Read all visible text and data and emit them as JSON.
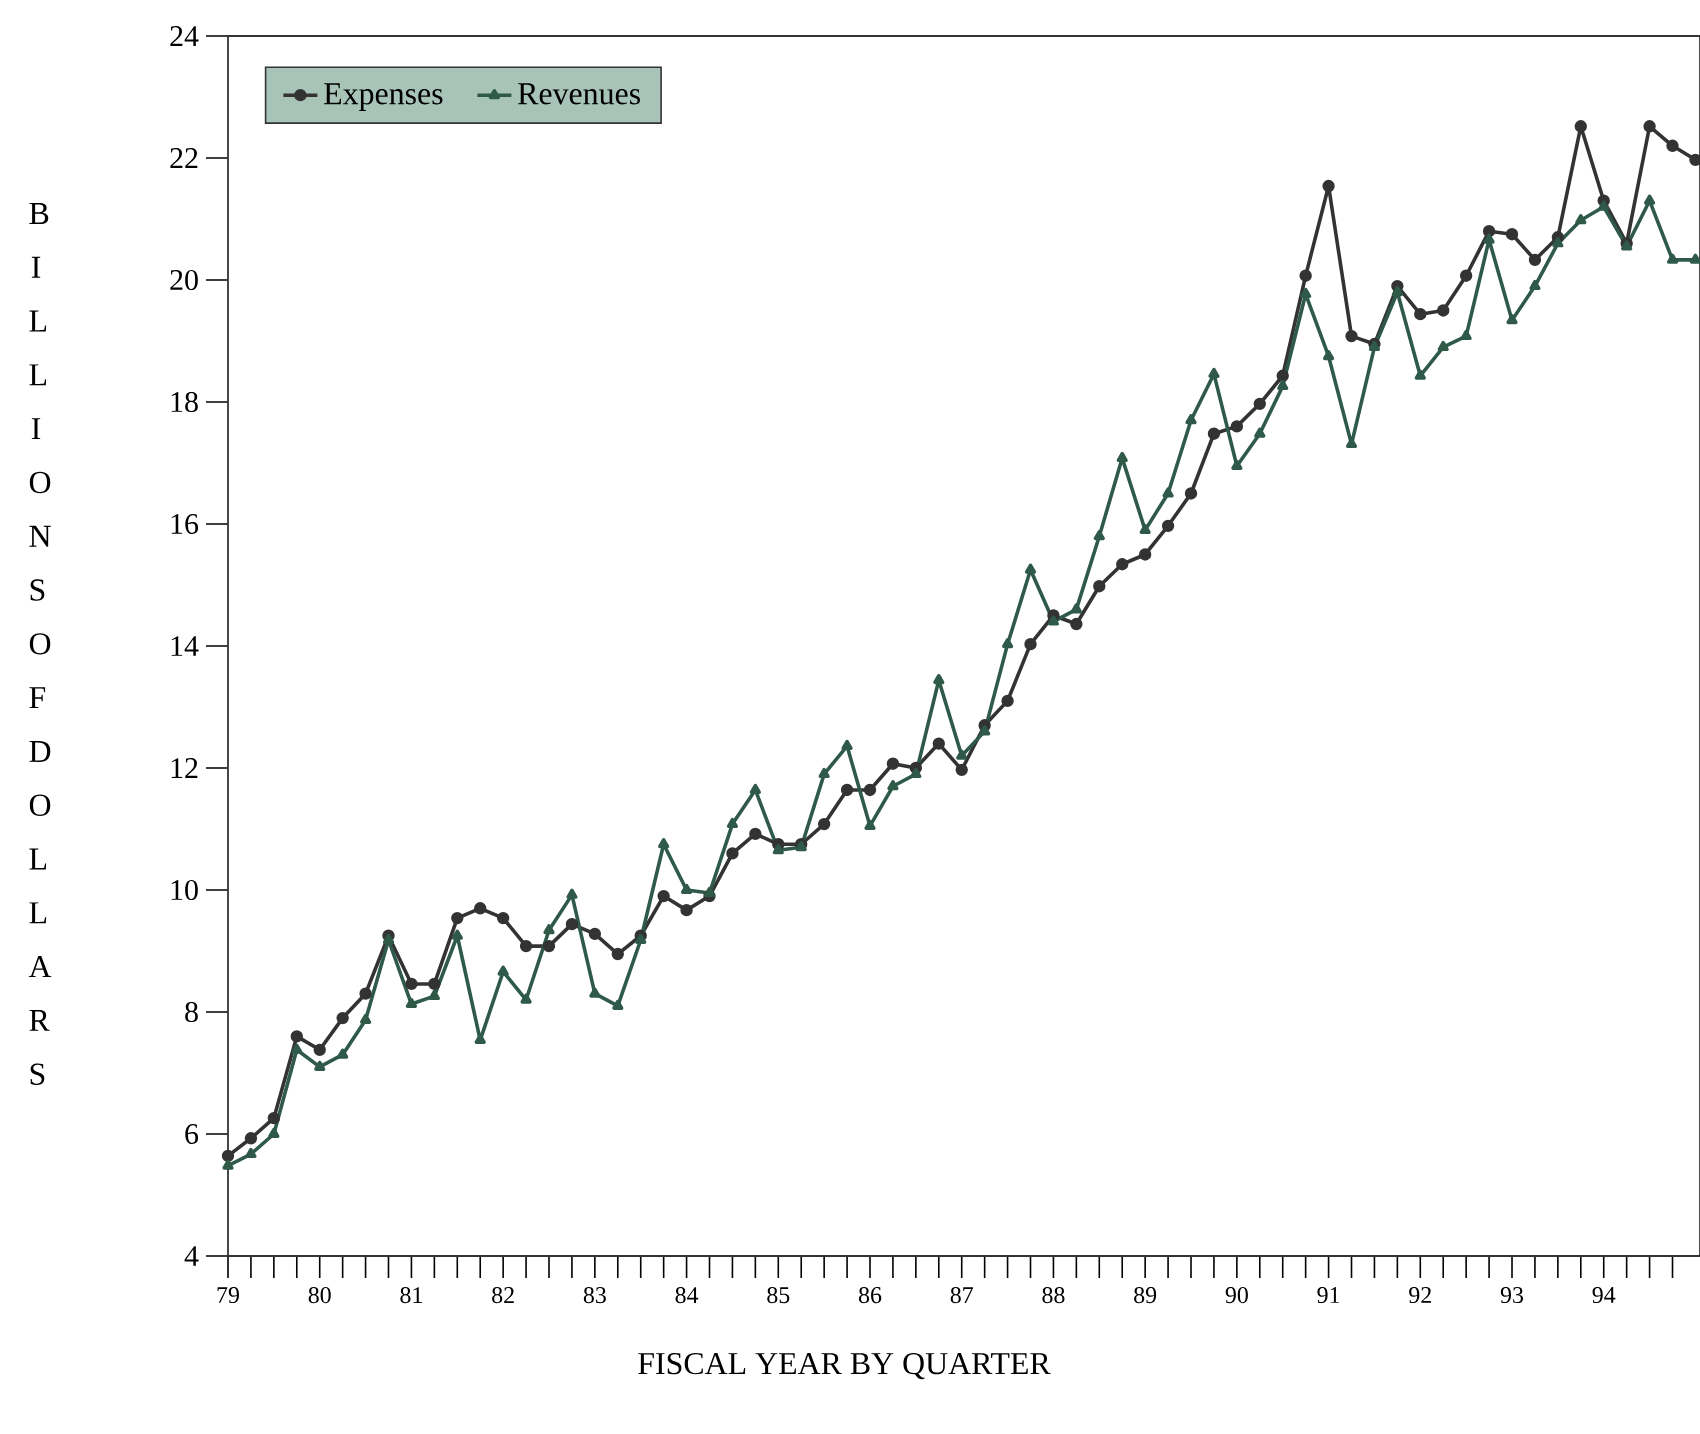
{
  "chart_data": {
    "type": "line",
    "xlabel": "FISCAL YEAR BY QUARTER",
    "ylabel": "BILLIONS OF DOLLARS",
    "x": [
      79,
      79.25,
      79.5,
      79.75,
      80,
      80.25,
      80.5,
      80.75,
      81,
      81.25,
      81.5,
      81.75,
      82,
      82.25,
      82.5,
      82.75,
      83,
      83.25,
      83.5,
      83.75,
      84,
      84.25,
      84.5,
      84.75,
      85,
      85.25,
      85.5,
      85.75,
      86,
      86.25,
      86.5,
      86.75,
      87,
      87.25,
      87.5,
      87.75,
      88,
      88.25,
      88.5,
      88.75,
      89,
      89.25,
      89.5,
      89.75,
      90,
      90.25,
      90.5,
      90.75,
      91,
      91.25,
      91.5,
      91.75,
      92,
      92.25,
      92.5,
      92.75,
      93,
      93.25,
      93.5,
      93.75,
      94,
      94.25,
      94.5,
      94.75,
      95
    ],
    "series": [
      {
        "name": "Expenses",
        "color": "#333333",
        "marker": "circle",
        "values": [
          5.64,
          5.93,
          6.26,
          7.6,
          7.38,
          7.9,
          8.3,
          9.25,
          8.46,
          8.46,
          9.54,
          9.7,
          9.54,
          9.08,
          9.08,
          9.44,
          9.28,
          8.95,
          9.25,
          9.9,
          9.67,
          9.9,
          10.6,
          10.92,
          10.75,
          10.75,
          11.08,
          11.64,
          11.64,
          12.07,
          12.0,
          12.4,
          11.97,
          12.7,
          13.1,
          14.03,
          14.5,
          14.36,
          14.98,
          15.34,
          15.5,
          15.97,
          16.5,
          17.48,
          17.6,
          17.97,
          18.43,
          20.07,
          21.54,
          19.08,
          18.95,
          19.9,
          19.44,
          19.5,
          20.07,
          20.8,
          20.75,
          20.33,
          20.7,
          22.52,
          21.3,
          20.6,
          22.52,
          22.2,
          21.97
        ]
      },
      {
        "name": "Revenues",
        "color": "#2f5a4a",
        "marker": "triangle",
        "values": [
          5.48,
          5.67,
          6.0,
          7.38,
          7.1,
          7.3,
          7.87,
          9.18,
          8.13,
          8.26,
          9.25,
          7.54,
          8.66,
          8.2,
          9.34,
          9.92,
          8.3,
          8.1,
          9.18,
          10.75,
          10.0,
          9.95,
          11.08,
          11.64,
          10.65,
          10.7,
          11.9,
          12.36,
          11.05,
          11.7,
          11.9,
          13.44,
          12.2,
          12.6,
          14.03,
          15.25,
          14.4,
          14.6,
          15.8,
          17.08,
          15.9,
          16.5,
          17.7,
          18.46,
          16.95,
          17.48,
          18.26,
          19.77,
          18.75,
          17.31,
          18.9,
          19.8,
          18.43,
          18.9,
          19.08,
          20.66,
          19.34,
          19.9,
          20.6,
          20.98,
          21.2,
          20.55,
          21.3,
          20.33,
          20.33
        ]
      }
    ],
    "xlim": [
      79,
      95.05
    ],
    "ylim": [
      4,
      24
    ],
    "xticks": [
      79,
      {
        "value": 79.25,
        "label": null
      },
      {
        "value": 79.5,
        "label": null
      },
      {
        "value": 79.75,
        "label": null
      },
      80,
      {
        "value": 80.25,
        "label": null
      },
      {
        "value": 80.5,
        "label": null
      },
      {
        "value": 80.75,
        "label": null
      },
      81,
      {
        "value": 81.25,
        "label": null
      },
      {
        "value": 81.5,
        "label": null
      },
      {
        "value": 81.75,
        "label": null
      },
      82,
      {
        "value": 82.25,
        "label": null
      },
      {
        "value": 82.5,
        "label": null
      },
      {
        "value": 82.75,
        "label": null
      },
      83,
      {
        "value": 83.25,
        "label": null
      },
      {
        "value": 83.5,
        "label": null
      },
      {
        "value": 83.75,
        "label": null
      },
      84,
      {
        "value": 84.25,
        "label": null
      },
      {
        "value": 84.5,
        "label": null
      },
      {
        "value": 84.75,
        "label": null
      },
      85,
      {
        "value": 85.25,
        "label": null
      },
      {
        "value": 85.5,
        "label": null
      },
      {
        "value": 85.75,
        "label": null
      },
      86,
      {
        "value": 86.25,
        "label": null
      },
      {
        "value": 86.5,
        "label": null
      },
      {
        "value": 86.75,
        "label": null
      },
      87,
      {
        "value": 87.25,
        "label": null
      },
      {
        "value": 87.5,
        "label": null
      },
      {
        "value": 87.75,
        "label": null
      },
      88,
      {
        "value": 88.25,
        "label": null
      },
      {
        "value": 88.5,
        "label": null
      },
      {
        "value": 88.75,
        "label": null
      },
      89,
      {
        "value": 89.25,
        "label": null
      },
      {
        "value": 89.5,
        "label": null
      },
      {
        "value": 89.75,
        "label": null
      },
      90,
      {
        "value": 90.25,
        "label": null
      },
      {
        "value": 90.5,
        "label": null
      },
      {
        "value": 90.75,
        "label": null
      },
      91,
      {
        "value": 91.25,
        "label": null
      },
      {
        "value": 91.5,
        "label": null
      },
      {
        "value": 91.75,
        "label": null
      },
      92,
      {
        "value": 92.25,
        "label": null
      },
      {
        "value": 92.5,
        "label": null
      },
      {
        "value": 92.75,
        "label": null
      },
      93,
      {
        "value": 93.25,
        "label": null
      },
      {
        "value": 93.5,
        "label": null
      },
      {
        "value": 93.75,
        "label": null
      },
      94,
      {
        "value": 94.25,
        "label": null
      },
      {
        "value": 94.5,
        "label": null
      },
      {
        "value": 94.75,
        "label": null
      }
    ],
    "yticks": [
      4,
      6,
      8,
      10,
      12,
      14,
      16,
      18,
      20,
      22,
      24
    ],
    "grid": false,
    "legend": "top left",
    "line_style": "solid"
  }
}
